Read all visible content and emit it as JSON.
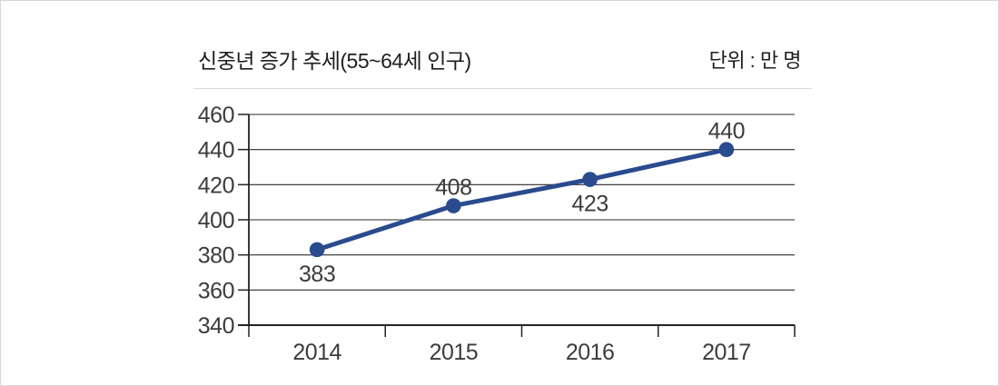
{
  "header": {
    "title": "신중년 증가 추세(55~64세 인구)",
    "unit": "단위 : 만 명"
  },
  "chart_data": {
    "type": "line",
    "title": "신중년 증가 추세(55~64세 인구)",
    "unit_label": "단위 : 만 명",
    "categories": [
      "2014",
      "2015",
      "2016",
      "2017"
    ],
    "series": [
      {
        "name": "55~64세 인구",
        "values": [
          383,
          408,
          423,
          440
        ]
      }
    ],
    "value_labels": [
      "383",
      "408",
      "423",
      "440"
    ],
    "value_label_positions": [
      "below",
      "above",
      "below",
      "above"
    ],
    "ylim": [
      340,
      460
    ],
    "yticks": [
      340,
      360,
      380,
      400,
      420,
      440,
      460
    ],
    "grid": "horizontal",
    "legend": "none",
    "colors": {
      "line": "#2a4b8d",
      "marker": "#2a4b8d",
      "grid": "#2b2b2b",
      "axis": "#232323",
      "tick_text": "#3c3c3c",
      "value_text": "#3c3c3c"
    }
  }
}
